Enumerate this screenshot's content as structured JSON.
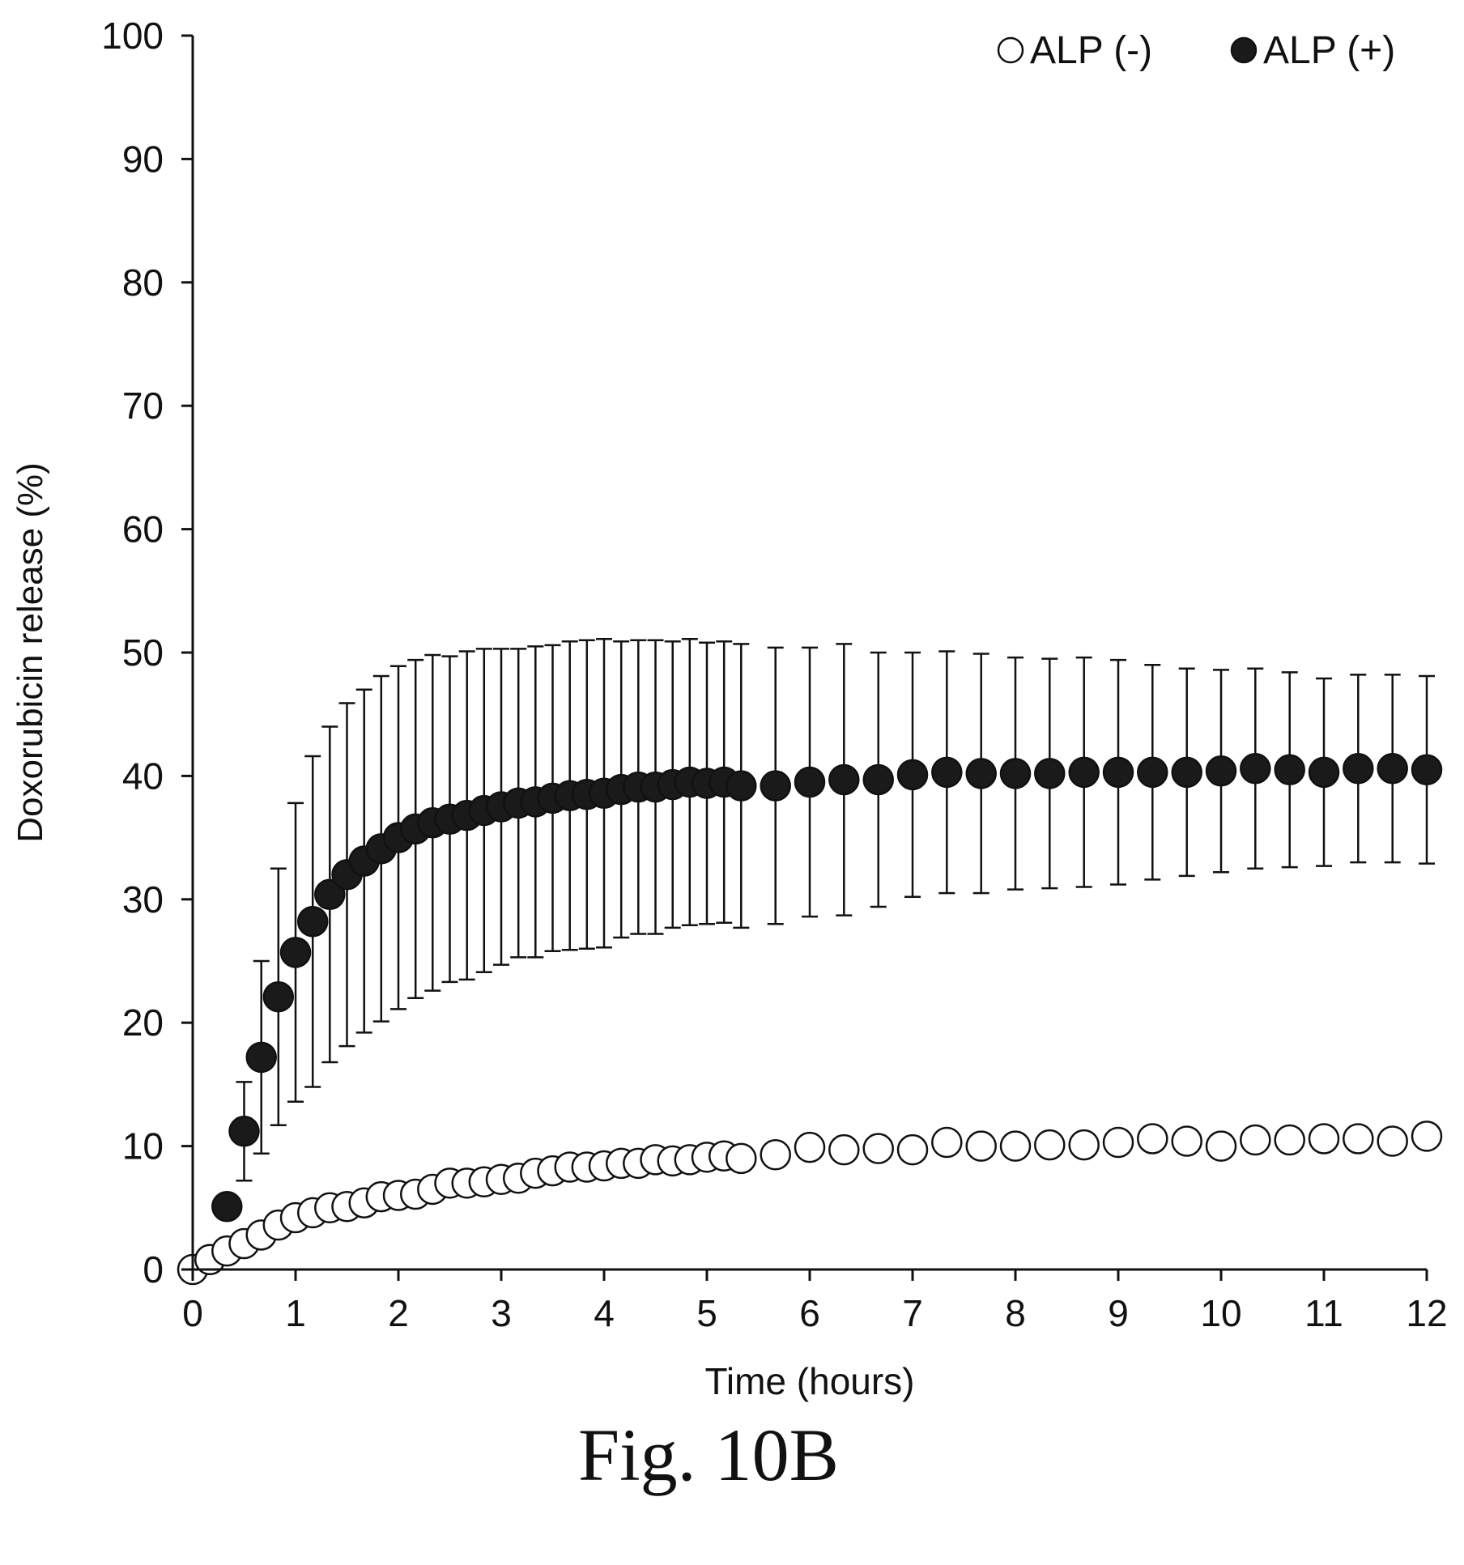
{
  "figure_caption": "Fig. 10B",
  "chart_data": {
    "type": "scatter",
    "xlabel": "Time (hours)",
    "ylabel": "Doxorubicin release (%)",
    "xlim": [
      0,
      12
    ],
    "ylim": [
      0,
      100
    ],
    "xticks": [
      0,
      1,
      2,
      3,
      4,
      5,
      6,
      7,
      8,
      9,
      10,
      11,
      12
    ],
    "yticks": [
      0,
      10,
      20,
      30,
      40,
      50,
      60,
      70,
      80,
      90,
      100
    ],
    "grid": false,
    "legend_position": "top-right",
    "colors": {
      "series_fill_open": "#ffffff",
      "series_fill_closed": "#1a1a1a",
      "axis": "#111111"
    },
    "series": [
      {
        "name": "ALP (-)",
        "marker": "open-circle",
        "x": [
          0,
          0.167,
          0.333,
          0.5,
          0.667,
          0.833,
          1.0,
          1.167,
          1.333,
          1.5,
          1.667,
          1.833,
          2.0,
          2.167,
          2.333,
          2.5,
          2.667,
          2.833,
          3.0,
          3.167,
          3.333,
          3.5,
          3.667,
          3.833,
          4.0,
          4.167,
          4.333,
          4.5,
          4.667,
          4.833,
          5.0,
          5.167,
          5.333,
          5.667,
          6.0,
          6.333,
          6.667,
          7.0,
          7.333,
          7.667,
          8.0,
          8.333,
          8.667,
          9.0,
          9.333,
          9.667,
          10.0,
          10.333,
          10.667,
          11.0,
          11.333,
          11.667,
          12.0
        ],
        "y": [
          0,
          0.8,
          1.5,
          2.1,
          2.8,
          3.6,
          4.2,
          4.6,
          5.0,
          5.1,
          5.4,
          5.9,
          6.0,
          6.1,
          6.5,
          7.0,
          7.0,
          7.1,
          7.3,
          7.4,
          7.8,
          8.0,
          8.3,
          8.3,
          8.4,
          8.6,
          8.6,
          8.9,
          8.8,
          8.9,
          9.1,
          9.2,
          9.0,
          9.3,
          9.9,
          9.7,
          9.8,
          9.7,
          10.3,
          10.0,
          10.0,
          10.1,
          10.1,
          10.3,
          10.6,
          10.4,
          10.0,
          10.5,
          10.5,
          10.6,
          10.6,
          10.4,
          10.8
        ],
        "yerr": [
          0,
          0.3,
          0.4,
          0.5,
          0.5,
          0.6,
          0.6,
          0.7,
          0.7,
          0.7,
          0.8,
          0.8,
          0.9,
          0.9,
          0.9,
          1.0,
          1.0,
          1.0,
          1.0,
          1.0,
          1.0,
          1.0,
          1.0,
          1.0,
          1.0,
          1.0,
          1.0,
          1.0,
          1.0,
          1.0,
          1.0,
          1.0,
          0.8,
          0.4,
          0.4,
          0.4,
          0.4,
          0.4,
          0.4,
          0.4,
          0.4,
          0.4,
          0.4,
          0.4,
          0.4,
          0.4,
          0.4,
          0.4,
          0.4,
          0.4,
          0.4,
          0.4,
          0.4
        ]
      },
      {
        "name": "ALP (+)",
        "marker": "filled-circle",
        "x": [
          0.167,
          0.333,
          0.5,
          0.667,
          0.833,
          1.0,
          1.167,
          1.333,
          1.5,
          1.667,
          1.833,
          2.0,
          2.167,
          2.333,
          2.5,
          2.667,
          2.833,
          3.0,
          3.167,
          3.333,
          3.5,
          3.667,
          3.833,
          4.0,
          4.167,
          4.333,
          4.5,
          4.667,
          4.833,
          5.0,
          5.167,
          5.333,
          5.667,
          6.0,
          6.333,
          6.667,
          7.0,
          7.333,
          7.667,
          8.0,
          8.333,
          8.667,
          9.0,
          9.333,
          9.667,
          10.0,
          10.333,
          10.667,
          11.0,
          11.333,
          11.667,
          12.0
        ],
        "y": [
          0.8,
          5.1,
          11.2,
          17.2,
          22.1,
          25.7,
          28.2,
          30.4,
          32.0,
          33.1,
          34.1,
          35.0,
          35.7,
          36.2,
          36.5,
          36.8,
          37.2,
          37.5,
          37.8,
          37.9,
          38.2,
          38.4,
          38.5,
          38.6,
          38.9,
          39.1,
          39.1,
          39.3,
          39.5,
          39.4,
          39.5,
          39.2,
          39.2,
          39.5,
          39.7,
          39.7,
          40.1,
          40.3,
          40.2,
          40.2,
          40.2,
          40.3,
          40.3,
          40.3,
          40.3,
          40.4,
          40.6,
          40.5,
          40.3,
          40.6,
          40.6,
          40.5
        ],
        "yerr": [
          0.4,
          0.8,
          4.0,
          7.8,
          10.4,
          12.1,
          13.4,
          13.6,
          13.9,
          13.9,
          14.0,
          13.9,
          13.7,
          13.6,
          13.2,
          13.3,
          13.1,
          12.8,
          12.5,
          12.6,
          12.4,
          12.5,
          12.5,
          12.5,
          12.0,
          11.9,
          11.9,
          11.6,
          11.6,
          11.4,
          11.4,
          11.5,
          11.2,
          10.9,
          11.0,
          10.3,
          9.9,
          9.8,
          9.7,
          9.4,
          9.3,
          9.3,
          9.1,
          8.7,
          8.4,
          8.2,
          8.1,
          7.9,
          7.6,
          7.6,
          7.6,
          7.6
        ]
      }
    ]
  }
}
